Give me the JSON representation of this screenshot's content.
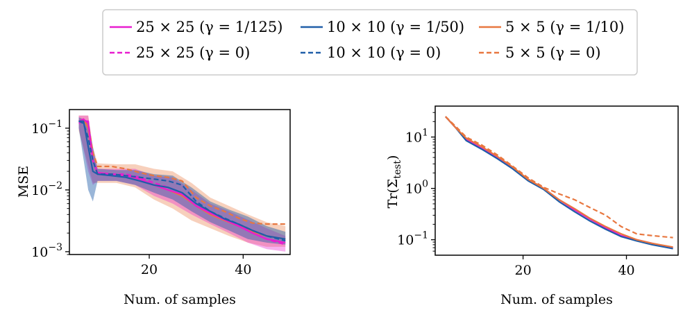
{
  "legend": {
    "location": "top-center",
    "columns": 3,
    "entries": [
      {
        "id": "g25",
        "label": "25 × 25 (γ = 1/125)",
        "color": "#e81ccf",
        "style": "solid"
      },
      {
        "id": "g10",
        "label": "10 × 10 (γ = 1/50)",
        "color": "#1f5ea8",
        "style": "solid"
      },
      {
        "id": "g5",
        "label": "5 × 5 (γ = 1/10)",
        "color": "#e8773f",
        "style": "solid"
      },
      {
        "id": "z25",
        "label": "25 × 25 (γ = 0)",
        "color": "#e81ccf",
        "style": "dashed"
      },
      {
        "id": "z10",
        "label": "10 × 10 (γ = 0)",
        "color": "#1f5ea8",
        "style": "dashed"
      },
      {
        "id": "z5",
        "label": "5 × 5 (γ = 0)",
        "color": "#e8773f",
        "style": "dashed"
      }
    ]
  },
  "chart_data": [
    {
      "type": "line",
      "panel": "left",
      "xlabel": "Num. of samples",
      "ylabel": "MSE",
      "yscale": "log",
      "xlim": [
        3,
        50
      ],
      "ylim": [
        0.0009,
        0.2
      ],
      "xticks": [
        20,
        40
      ],
      "yticks": [
        {
          "value": 0.1,
          "label": "10",
          "exp": "−1"
        },
        {
          "value": 0.01,
          "label": "10",
          "exp": "−2"
        },
        {
          "value": 0.001,
          "label": "10",
          "exp": "−3"
        }
      ],
      "bands": [
        {
          "series": "g5",
          "color": "#e8773f",
          "opacity": 0.35,
          "x": [
            5,
            7,
            8,
            9,
            13,
            17,
            21,
            25,
            29,
            33,
            37,
            41,
            45,
            49
          ],
          "lower": [
            0.09,
            0.025,
            0.013,
            0.013,
            0.013,
            0.011,
            0.007,
            0.005,
            0.0032,
            0.0024,
            0.0018,
            0.0014,
            0.0012,
            0.0012
          ],
          "upper": [
            0.16,
            0.16,
            0.05,
            0.027,
            0.026,
            0.026,
            0.022,
            0.02,
            0.013,
            0.0075,
            0.0055,
            0.004,
            0.003,
            0.0026
          ]
        },
        {
          "series": "g25",
          "color": "#e81ccf",
          "opacity": 0.35,
          "x": [
            5,
            7,
            8,
            9,
            13,
            17,
            21,
            25,
            29,
            33,
            37,
            41,
            45,
            49
          ],
          "lower": [
            0.1,
            0.02,
            0.012,
            0.014,
            0.014,
            0.012,
            0.008,
            0.006,
            0.004,
            0.0028,
            0.002,
            0.0014,
            0.0011,
            0.001
          ],
          "upper": [
            0.16,
            0.16,
            0.045,
            0.022,
            0.022,
            0.022,
            0.017,
            0.016,
            0.01,
            0.006,
            0.0045,
            0.0033,
            0.0024,
            0.0018
          ]
        },
        {
          "series": "g10",
          "color": "#1f5ea8",
          "opacity": 0.45,
          "x": [
            5,
            7,
            8,
            9,
            13,
            17,
            21,
            25,
            29,
            33,
            37,
            41,
            45,
            49
          ],
          "lower": [
            0.1,
            0.01,
            0.0065,
            0.014,
            0.014,
            0.012,
            0.009,
            0.007,
            0.0045,
            0.003,
            0.0022,
            0.0016,
            0.0014,
            0.0013
          ],
          "upper": [
            0.15,
            0.13,
            0.05,
            0.022,
            0.021,
            0.021,
            0.018,
            0.017,
            0.011,
            0.0065,
            0.0048,
            0.0037,
            0.0026,
            0.0021
          ]
        }
      ],
      "series": [
        {
          "id": "z5",
          "name": "5 × 5 (γ = 0)",
          "color": "#e8773f",
          "dash": true,
          "x": [
            5,
            6,
            7,
            8,
            9,
            12,
            15,
            18,
            21,
            24,
            27,
            30,
            33,
            36,
            39,
            42,
            45,
            49
          ],
          "y": [
            0.13,
            0.13,
            0.12,
            0.04,
            0.024,
            0.024,
            0.022,
            0.019,
            0.017,
            0.016,
            0.014,
            0.0075,
            0.0055,
            0.0045,
            0.0035,
            0.0029,
            0.0028,
            0.0028
          ]
        },
        {
          "id": "g5",
          "name": "5 × 5 (γ = 1/10)",
          "color": "#e8773f",
          "dash": false,
          "x": [
            5,
            6,
            7,
            8,
            9,
            12,
            15,
            18,
            21,
            24,
            27,
            30,
            33,
            36,
            39,
            42,
            45,
            49
          ],
          "y": [
            0.13,
            0.14,
            0.1,
            0.03,
            0.019,
            0.018,
            0.017,
            0.015,
            0.012,
            0.01,
            0.008,
            0.0055,
            0.004,
            0.0032,
            0.0026,
            0.0021,
            0.0018,
            0.0016
          ]
        },
        {
          "id": "z25",
          "name": "25 × 25 (γ = 0)",
          "color": "#e81ccf",
          "dash": true,
          "x": [
            5,
            6,
            7,
            8,
            9,
            12,
            15,
            18,
            21,
            24,
            27,
            30,
            33,
            36,
            39,
            42,
            45,
            49
          ],
          "y": [
            0.12,
            0.13,
            0.13,
            0.03,
            0.019,
            0.018,
            0.018,
            0.016,
            0.013,
            0.011,
            0.009,
            0.006,
            0.0044,
            0.0034,
            0.0027,
            0.002,
            0.0016,
            0.0013
          ]
        },
        {
          "id": "g25",
          "name": "25 × 25 (γ = 1/125)",
          "color": "#e81ccf",
          "dash": false,
          "x": [
            5,
            6,
            7,
            8,
            9,
            12,
            15,
            18,
            21,
            24,
            27,
            30,
            33,
            36,
            39,
            42,
            45,
            49
          ],
          "y": [
            0.13,
            0.14,
            0.12,
            0.03,
            0.019,
            0.018,
            0.017,
            0.015,
            0.012,
            0.01,
            0.0085,
            0.0055,
            0.0042,
            0.0033,
            0.0026,
            0.002,
            0.0016,
            0.0014
          ]
        },
        {
          "id": "z10",
          "name": "10 × 10 (γ = 0)",
          "color": "#1f5ea8",
          "dash": true,
          "x": [
            5,
            6,
            7,
            8,
            9,
            12,
            15,
            18,
            21,
            24,
            27,
            30,
            33,
            36,
            39,
            42,
            45,
            49
          ],
          "y": [
            0.13,
            0.12,
            0.07,
            0.03,
            0.018,
            0.018,
            0.017,
            0.016,
            0.015,
            0.014,
            0.012,
            0.0065,
            0.0045,
            0.0035,
            0.0028,
            0.0022,
            0.0018,
            0.0015
          ]
        },
        {
          "id": "g10",
          "name": "10 × 10 (γ = 1/50)",
          "color": "#1f5ea8",
          "dash": false,
          "x": [
            5,
            6,
            7,
            8,
            9,
            12,
            15,
            18,
            21,
            24,
            27,
            30,
            33,
            36,
            39,
            42,
            45,
            49
          ],
          "y": [
            0.13,
            0.13,
            0.05,
            0.02,
            0.018,
            0.017,
            0.016,
            0.014,
            0.012,
            0.011,
            0.009,
            0.006,
            0.0045,
            0.0034,
            0.0028,
            0.0022,
            0.0018,
            0.0016
          ]
        }
      ]
    },
    {
      "type": "line",
      "panel": "right",
      "xlabel": "Num. of samples",
      "ylabel": "Tr(Σ_test)",
      "yscale": "log",
      "xlim": [
        3,
        50
      ],
      "ylim": [
        0.05,
        40
      ],
      "xticks": [
        20,
        40
      ],
      "yticks": [
        {
          "value": 10,
          "label": "10",
          "exp": "1"
        },
        {
          "value": 1,
          "label": "10",
          "exp": "0"
        },
        {
          "value": 0.1,
          "label": "10",
          "exp": "−1"
        }
      ],
      "bands": [],
      "series": [
        {
          "id": "g25",
          "name": "25 × 25 (γ = 1/125)",
          "color": "#e81ccf",
          "dash": false,
          "x": [
            5,
            7,
            9,
            12,
            15,
            18,
            21,
            24,
            27,
            30,
            33,
            36,
            39,
            42,
            45,
            49
          ],
          "y": [
            25,
            15,
            9,
            6,
            4,
            2.5,
            1.5,
            1,
            0.6,
            0.38,
            0.25,
            0.17,
            0.12,
            0.1,
            0.085,
            0.07
          ]
        },
        {
          "id": "g10",
          "name": "10 × 10 (γ = 1/50)",
          "color": "#1f5ea8",
          "dash": false,
          "x": [
            5,
            7,
            9,
            12,
            15,
            18,
            21,
            24,
            27,
            30,
            33,
            36,
            39,
            42,
            45,
            49
          ],
          "y": [
            25,
            15,
            8.5,
            5.8,
            3.8,
            2.4,
            1.4,
            0.95,
            0.55,
            0.35,
            0.23,
            0.16,
            0.115,
            0.095,
            0.08,
            0.067
          ]
        },
        {
          "id": "z5",
          "name": "5 × 5 (γ = 0)",
          "color": "#e8773f",
          "dash": true,
          "x": [
            5,
            7,
            9,
            12,
            15,
            18,
            21,
            24,
            27,
            30,
            33,
            36,
            39,
            42,
            45,
            49
          ],
          "y": [
            25,
            16,
            10,
            7,
            4.5,
            2.7,
            1.6,
            1.05,
            0.78,
            0.6,
            0.42,
            0.3,
            0.18,
            0.13,
            0.12,
            0.11
          ]
        },
        {
          "id": "g5",
          "name": "5 × 5 (γ = 1/10)",
          "color": "#e8773f",
          "dash": false,
          "x": [
            5,
            7,
            9,
            12,
            15,
            18,
            21,
            24,
            27,
            30,
            33,
            36,
            39,
            42,
            45,
            49
          ],
          "y": [
            25,
            15,
            9.5,
            6.5,
            4.2,
            2.6,
            1.5,
            1,
            0.6,
            0.4,
            0.26,
            0.18,
            0.13,
            0.1,
            0.085,
            0.072
          ]
        }
      ]
    }
  ]
}
